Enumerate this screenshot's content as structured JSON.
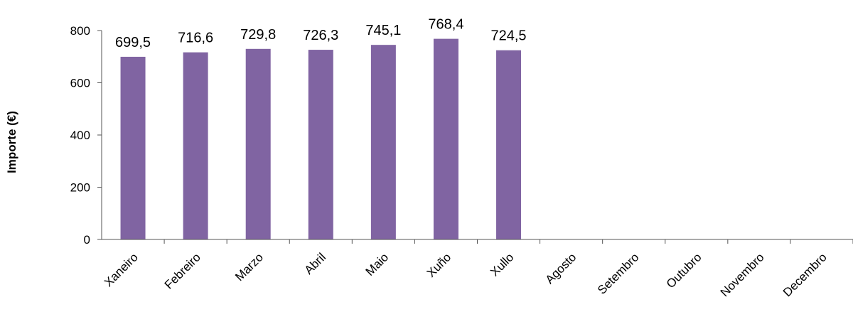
{
  "chart_data": {
    "type": "bar",
    "title": "",
    "xlabel": "",
    "ylabel": "Importe (€)",
    "ylim": [
      0,
      800
    ],
    "yticks": [
      0,
      200,
      400,
      600,
      800
    ],
    "grid": false,
    "categories": [
      "Xaneiro",
      "Febreiro",
      "Marzo",
      "Abril",
      "Maio",
      "Xuño",
      "Xullo",
      "Agosto",
      "Setembro",
      "Outubro",
      "Novembro",
      "Decembro"
    ],
    "values": [
      699.5,
      716.6,
      729.8,
      726.3,
      745.1,
      768.4,
      724.5,
      null,
      null,
      null,
      null,
      null
    ],
    "data_labels": [
      "699,5",
      "716,6",
      "729,8",
      "726,3",
      "745,1",
      "768,4",
      "724,5",
      "",
      "",
      "",
      "",
      ""
    ],
    "bar_color": "#8064a2"
  }
}
